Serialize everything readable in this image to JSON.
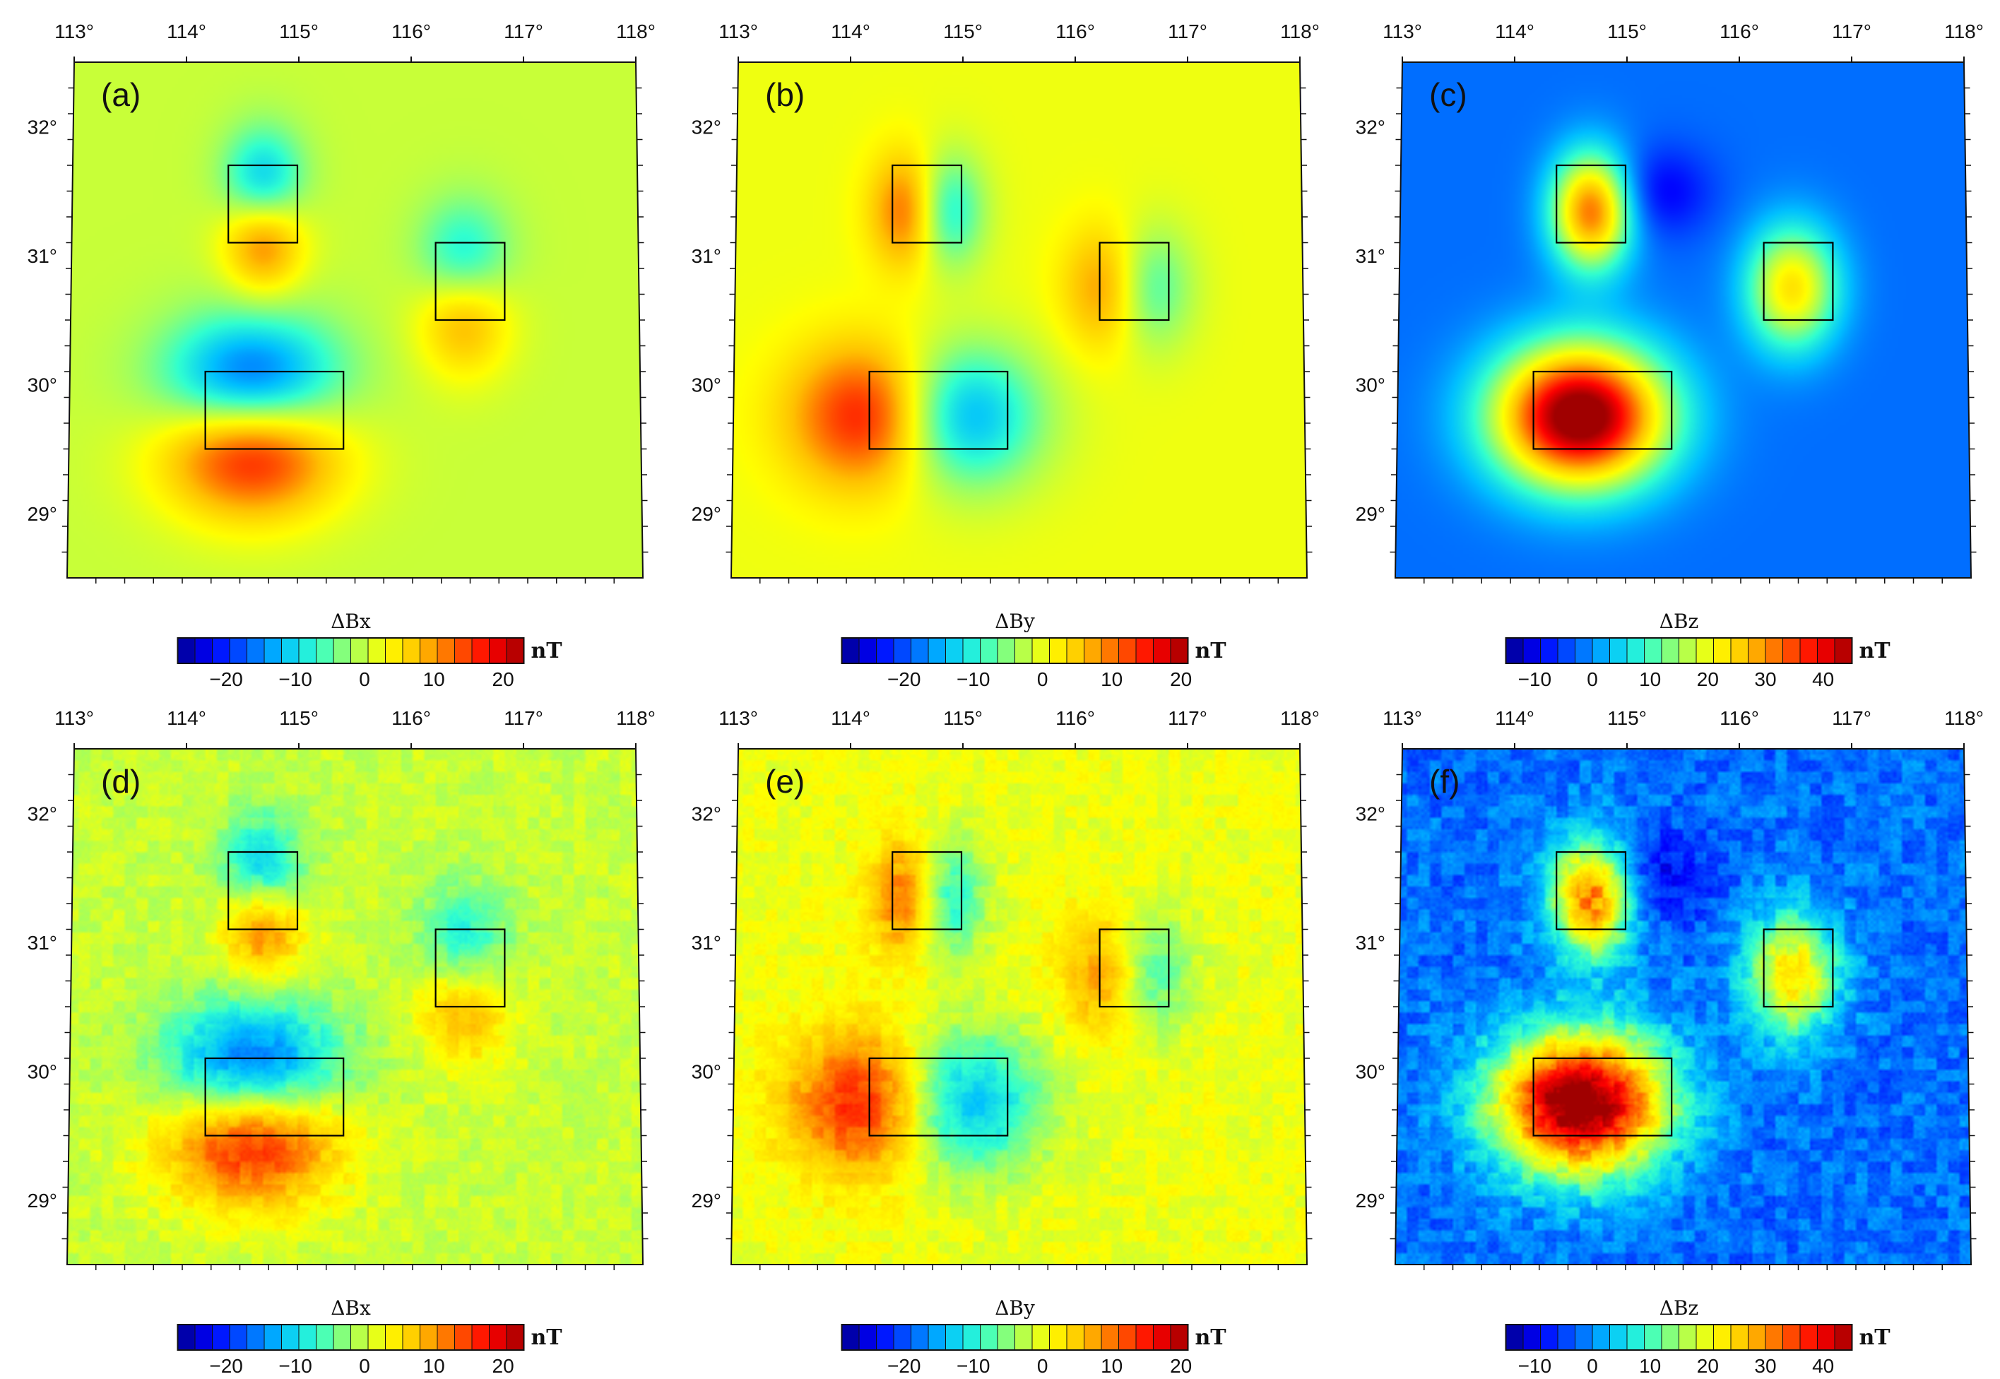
{
  "figure": {
    "lon_min": 113,
    "lon_max": 118,
    "lat_min": 28.5,
    "lat_max": 32.5,
    "lon_ticks": [
      113,
      114,
      115,
      116,
      117,
      118
    ],
    "lon_labels": [
      "113°",
      "114°",
      "115°",
      "116°",
      "117°",
      "118°"
    ],
    "lat_ticks": [
      29,
      30,
      31,
      32
    ],
    "lat_labels": [
      "29°",
      "30°",
      "31°",
      "32°"
    ],
    "unit_label": "nT",
    "colormap": [
      "#00008f",
      "#0000ff",
      "#0060ff",
      "#00c0ff",
      "#30ffd0",
      "#a0ff60",
      "#ffff00",
      "#ffc000",
      "#ff6000",
      "#ff0000",
      "#a00000"
    ],
    "source_boxes": [
      {
        "lon0": 114.4,
        "lon1": 115.0,
        "lat0": 31.1,
        "lat1": 31.7
      },
      {
        "lon0": 116.2,
        "lon1": 116.8,
        "lat0": 30.5,
        "lat1": 31.1
      },
      {
        "lon0": 114.2,
        "lon1": 115.4,
        "lat0": 29.5,
        "lat1": 30.1
      }
    ]
  },
  "chart_data": [
    {
      "type": "heatmap",
      "panel": "(a)",
      "title": "ΔBx",
      "component": "x",
      "noise": false,
      "colorbar": {
        "min": -27,
        "max": 23,
        "ticks": [
          -20,
          -10,
          0,
          10,
          20
        ],
        "tick_labels": [
          "−20",
          "−10",
          "0",
          "10",
          "20"
        ]
      }
    },
    {
      "type": "heatmap",
      "panel": "(b)",
      "title": "ΔBy",
      "component": "y",
      "noise": false,
      "colorbar": {
        "min": -29,
        "max": 21,
        "ticks": [
          -20,
          -10,
          0,
          10,
          20
        ],
        "tick_labels": [
          "−20",
          "−10",
          "0",
          "10",
          "20"
        ]
      }
    },
    {
      "type": "heatmap",
      "panel": "(c)",
      "title": "ΔBz",
      "component": "z",
      "noise": false,
      "colorbar": {
        "min": -15,
        "max": 45,
        "ticks": [
          -10,
          0,
          10,
          20,
          30,
          40
        ],
        "tick_labels": [
          "−10",
          "0",
          "10",
          "20",
          "30",
          "40"
        ]
      }
    },
    {
      "type": "heatmap",
      "panel": "(d)",
      "title": "ΔBx",
      "component": "x",
      "noise": true,
      "colorbar": {
        "min": -27,
        "max": 23,
        "ticks": [
          -20,
          -10,
          0,
          10,
          20
        ],
        "tick_labels": [
          "−20",
          "−10",
          "0",
          "10",
          "20"
        ]
      }
    },
    {
      "type": "heatmap",
      "panel": "(e)",
      "title": "ΔBy",
      "component": "y",
      "noise": true,
      "colorbar": {
        "min": -29,
        "max": 21,
        "ticks": [
          -20,
          -10,
          0,
          10,
          20
        ],
        "tick_labels": [
          "−20",
          "−10",
          "0",
          "10",
          "20"
        ]
      }
    },
    {
      "type": "heatmap",
      "panel": "(f)",
      "title": "ΔBz",
      "component": "z",
      "noise": true,
      "colorbar": {
        "min": -15,
        "max": 45,
        "ticks": [
          -10,
          0,
          10,
          20,
          30,
          40
        ],
        "tick_labels": [
          "−10",
          "0",
          "10",
          "20",
          "30",
          "40"
        ]
      }
    }
  ]
}
